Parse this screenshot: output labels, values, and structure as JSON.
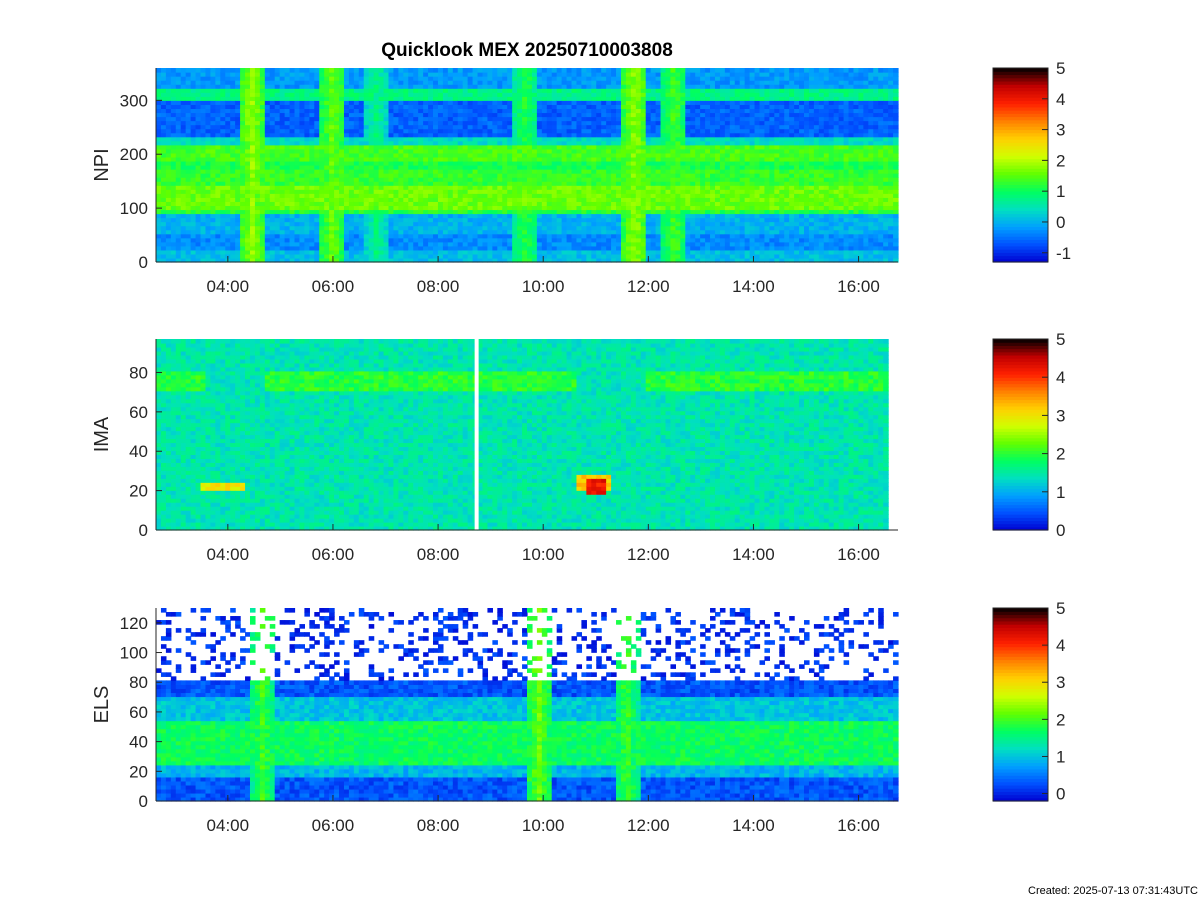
{
  "created": "Created: 2025-07-13 07:31:43UTC",
  "colors": {
    "colormap": [
      "#0000d0",
      "#0050ff",
      "#00a0ff",
      "#00e0c0",
      "#00ff60",
      "#60ff00",
      "#d0ff00",
      "#ffd000",
      "#ff8000",
      "#ff2000",
      "#c00000",
      "#000000"
    ],
    "axis": "#262626"
  },
  "chart_data": [
    {
      "type": "heatmap",
      "name": "NPI",
      "title": "Quicklook MEX 20250710003808",
      "ylabel": "NPI",
      "ylim": [
        0,
        360
      ],
      "yticks": [
        0,
        100,
        200,
        300
      ],
      "xlim": [
        "02:38",
        "16:45"
      ],
      "xticks": [
        "04:00",
        "06:00",
        "08:00",
        "10:00",
        "12:00",
        "14:00",
        "16:00"
      ],
      "colorbar": {
        "range": [
          -1.3,
          5
        ],
        "ticks": [
          -1,
          0,
          1,
          2,
          3,
          4,
          5
        ]
      },
      "bands": [
        {
          "y": [
            0,
            20
          ],
          "level": 0.1
        },
        {
          "y": [
            20,
            50
          ],
          "level": -0.3
        },
        {
          "y": [
            50,
            90
          ],
          "level": 0.0
        },
        {
          "y": [
            90,
            100
          ],
          "level": 1.2
        },
        {
          "y": [
            100,
            140
          ],
          "level": 1.6
        },
        {
          "y": [
            140,
            170
          ],
          "level": 1.3
        },
        {
          "y": [
            170,
            190
          ],
          "level": 1.1
        },
        {
          "y": [
            190,
            220
          ],
          "level": 1.4
        },
        {
          "y": [
            220,
            235
          ],
          "level": 0.4
        },
        {
          "y": [
            235,
            300
          ],
          "level": -0.6
        },
        {
          "y": [
            300,
            320
          ],
          "level": 0.8
        },
        {
          "y": [
            320,
            360
          ],
          "level": -0.2
        }
      ],
      "features": [
        {
          "time": "04:28",
          "level": 1.8
        },
        {
          "time": "06:00",
          "level": 1.6
        },
        {
          "time": "06:50",
          "level": 0.8
        },
        {
          "time": "09:40",
          "level": 1.2
        },
        {
          "time": "11:45",
          "level": 1.8
        },
        {
          "time": "12:30",
          "level": 1.4
        }
      ]
    },
    {
      "type": "heatmap",
      "name": "IMA",
      "ylabel": "IMA",
      "ylim": [
        0,
        97
      ],
      "yticks": [
        0,
        20,
        40,
        60,
        80
      ],
      "xlim": [
        "02:38",
        "16:45"
      ],
      "xticks": [
        "04:00",
        "06:00",
        "08:00",
        "10:00",
        "12:00",
        "14:00",
        "16:00"
      ],
      "data_end": "16:35",
      "gap": "08:44",
      "colorbar": {
        "range": [
          0,
          5
        ],
        "ticks": [
          0,
          1,
          2,
          3,
          4,
          5
        ]
      },
      "background_level": 1.45,
      "bands": [
        {
          "from": "02:40",
          "to": "03:35",
          "y": [
            70,
            80
          ],
          "level": 2.0
        },
        {
          "from": "03:30",
          "to": "04:20",
          "y": [
            20,
            25
          ],
          "level": 3.0
        },
        {
          "from": "04:40",
          "to": "08:44",
          "y": [
            70,
            80
          ],
          "level": 2.0
        },
        {
          "from": "08:46",
          "to": "10:40",
          "y": [
            70,
            80
          ],
          "level": 2.0
        },
        {
          "from": "10:40",
          "to": "11:20",
          "y": [
            20,
            28
          ],
          "level": 3.2
        },
        {
          "from": "11:55",
          "to": "16:35",
          "y": [
            70,
            80
          ],
          "level": 2.0
        }
      ],
      "peak": {
        "time": "11:00",
        "y": 22,
        "level": 4.2
      }
    },
    {
      "type": "heatmap",
      "name": "ELS",
      "ylabel": "ELS",
      "ylim": [
        0,
        130
      ],
      "yticks": [
        0,
        20,
        40,
        60,
        80,
        100,
        120
      ],
      "xlim": [
        "02:38",
        "16:45"
      ],
      "xticks": [
        "04:00",
        "06:00",
        "08:00",
        "10:00",
        "12:00",
        "14:00",
        "16:00"
      ],
      "colorbar": {
        "range": [
          -0.2,
          5
        ],
        "ticks": [
          0,
          1,
          2,
          3,
          4,
          5
        ]
      },
      "bands": [
        {
          "y": [
            0,
            15
          ],
          "level": 0.3
        },
        {
          "y": [
            15,
            25
          ],
          "level": 0.9
        },
        {
          "y": [
            25,
            55
          ],
          "level": 1.7
        },
        {
          "y": [
            55,
            70
          ],
          "level": 1.0
        },
        {
          "y": [
            70,
            82
          ],
          "level": 0.3
        },
        {
          "y": [
            82,
            130
          ],
          "level": 0.1
        }
      ],
      "features": [
        {
          "time": "04:40",
          "level": 2.0
        },
        {
          "time": "09:55",
          "level": 2.2
        },
        {
          "time": "11:35",
          "level": 2.0
        }
      ]
    }
  ]
}
